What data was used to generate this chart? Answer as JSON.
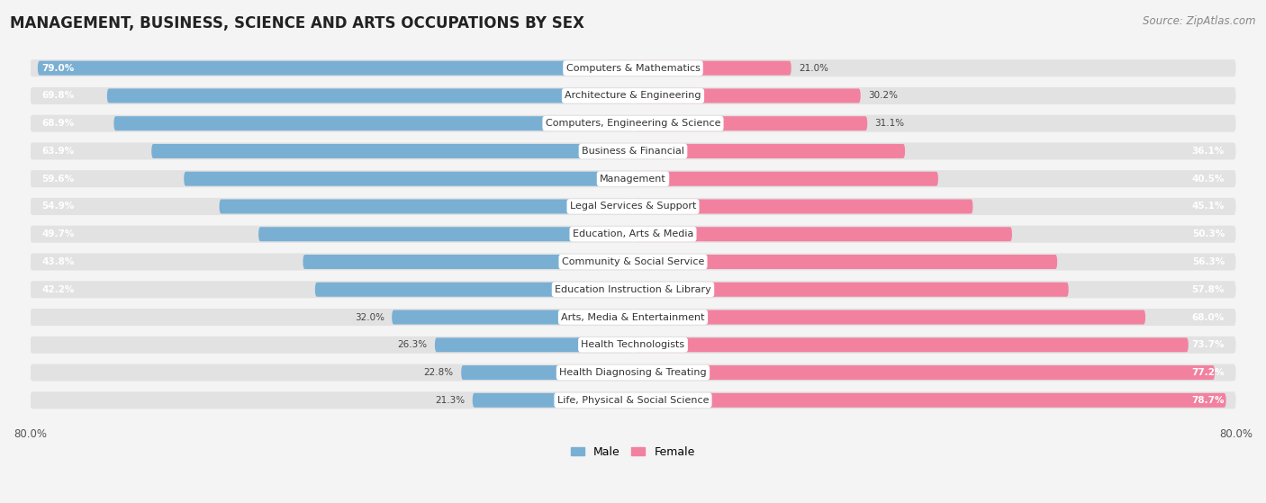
{
  "title": "MANAGEMENT, BUSINESS, SCIENCE AND ARTS OCCUPATIONS BY SEX",
  "source": "Source: ZipAtlas.com",
  "categories": [
    "Computers & Mathematics",
    "Architecture & Engineering",
    "Computers, Engineering & Science",
    "Business & Financial",
    "Management",
    "Legal Services & Support",
    "Education, Arts & Media",
    "Community & Social Service",
    "Education Instruction & Library",
    "Arts, Media & Entertainment",
    "Health Technologists",
    "Health Diagnosing & Treating",
    "Life, Physical & Social Science"
  ],
  "male_pct": [
    79.0,
    69.8,
    68.9,
    63.9,
    59.6,
    54.9,
    49.7,
    43.8,
    42.2,
    32.0,
    26.3,
    22.8,
    21.3
  ],
  "female_pct": [
    21.0,
    30.2,
    31.1,
    36.1,
    40.5,
    45.1,
    50.3,
    56.3,
    57.8,
    68.0,
    73.7,
    77.2,
    78.7
  ],
  "male_color": "#7aafd4",
  "female_color": "#f281a0",
  "male_label": "Male",
  "female_label": "Female",
  "bg_color": "#f4f4f4",
  "row_bg_color": "#e8e8e8",
  "bar_bg_alpha": 0.5,
  "axis_max": 80.0,
  "title_fontsize": 12,
  "source_fontsize": 8.5,
  "label_fontsize": 8,
  "bar_label_fontsize": 7.5,
  "pct_outside_threshold": 35
}
